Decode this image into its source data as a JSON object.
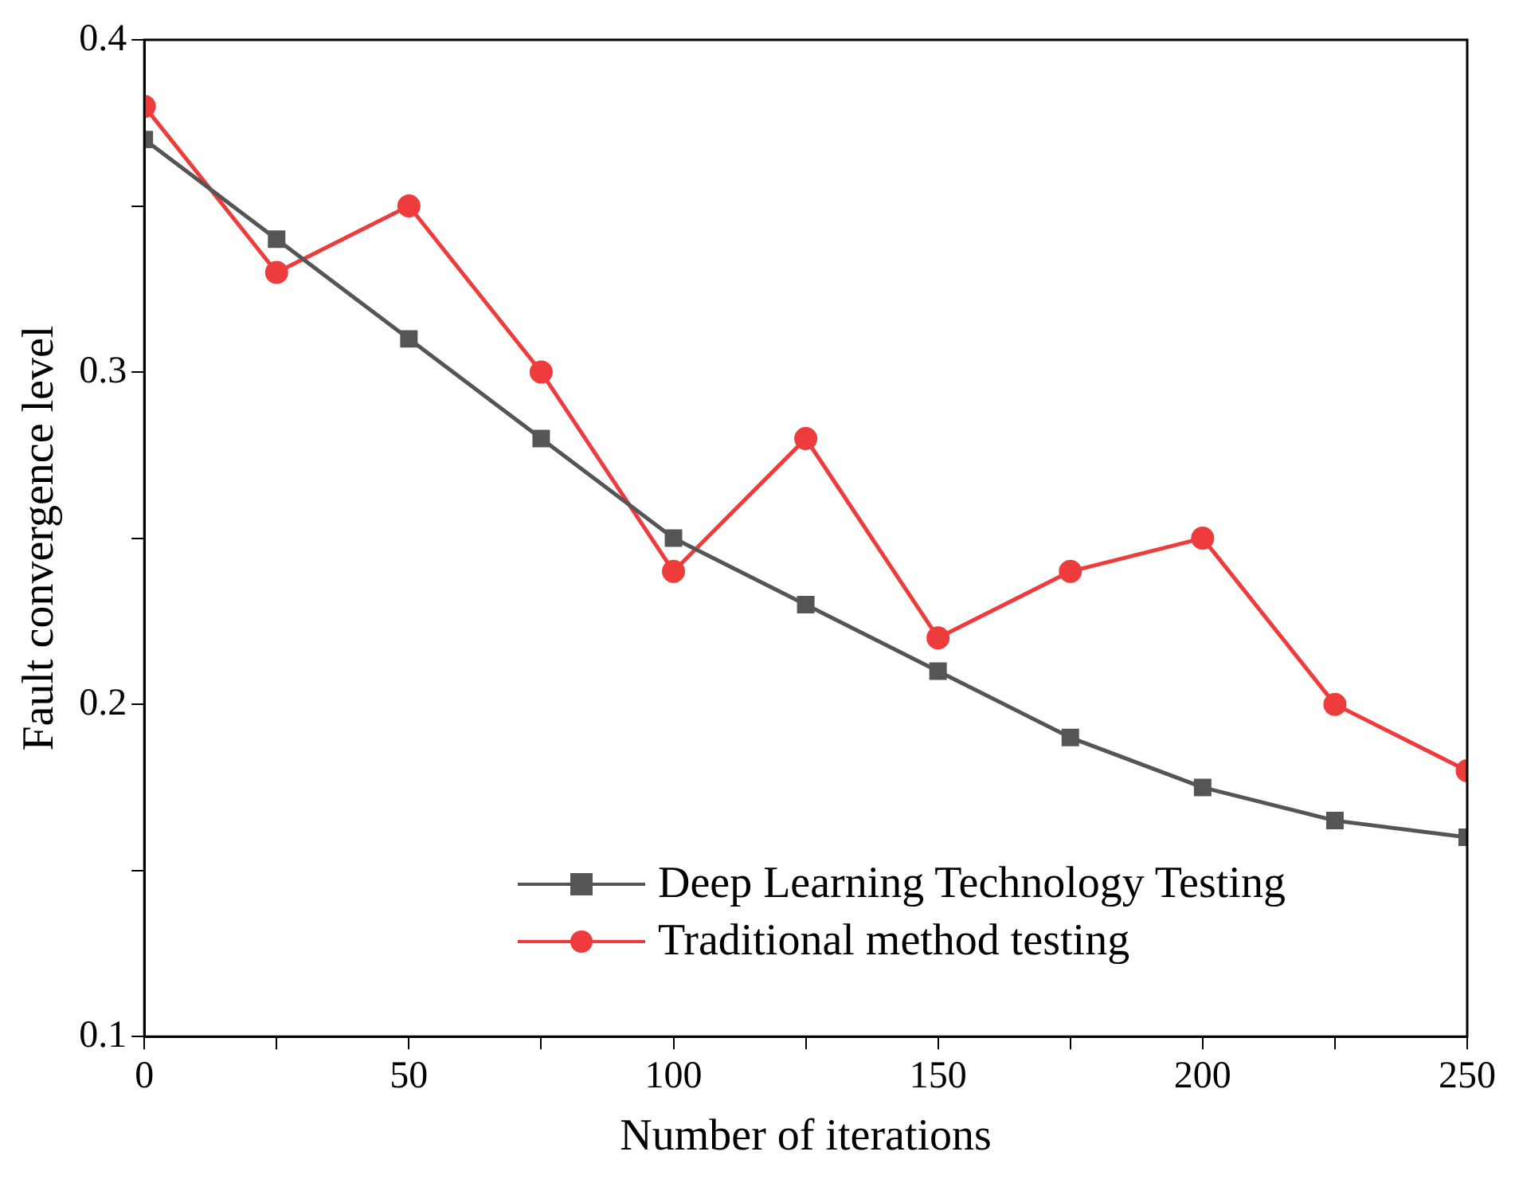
{
  "chart_data": {
    "type": "line",
    "xlabel": "Number of iterations",
    "ylabel": "Fault convergence level",
    "x": [
      0,
      25,
      50,
      75,
      100,
      125,
      150,
      175,
      200,
      225,
      250
    ],
    "series": [
      {
        "name": "Deep Learning Technology Testing",
        "color": "#555555",
        "marker": "square",
        "values": [
          0.37,
          0.34,
          0.31,
          0.28,
          0.25,
          0.23,
          0.21,
          0.19,
          0.175,
          0.165,
          0.16
        ]
      },
      {
        "name": "Traditional method testing",
        "color": "#ee3b3b",
        "marker": "circle",
        "values": [
          0.38,
          0.33,
          0.35,
          0.3,
          0.24,
          0.28,
          0.22,
          0.24,
          0.25,
          0.2,
          0.18
        ]
      }
    ],
    "xlim": [
      0,
      250
    ],
    "xticks": [
      0,
      {
        "value": 25,
        "label": null
      },
      50,
      {
        "value": 75,
        "label": null
      },
      100,
      {
        "value": 125,
        "label": null
      },
      150,
      {
        "value": 175,
        "label": null
      },
      200,
      {
        "value": 225,
        "label": null
      },
      250
    ],
    "ylim": [
      0.1,
      0.4
    ],
    "yticks": [
      0.1,
      {
        "value": 0.15,
        "label": null
      },
      0.2,
      {
        "value": 0.25,
        "label": null
      },
      0.3,
      {
        "value": 0.35,
        "label": null
      },
      0.4
    ],
    "grid": false,
    "legend": "bottom right",
    "line_style": "solid"
  }
}
